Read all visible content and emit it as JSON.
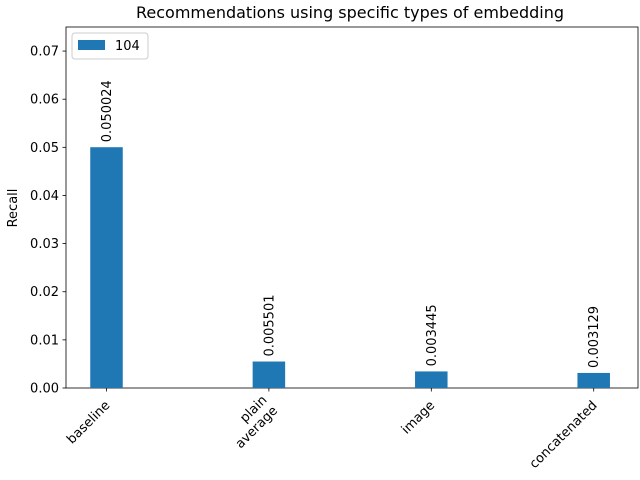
{
  "chart_data": {
    "type": "bar",
    "title": "Recommendations using specific types of embedding",
    "xlabel": "",
    "ylabel": "Recall",
    "categories": [
      "baseline",
      "plain\naverage",
      "image",
      "concatenated"
    ],
    "series": [
      {
        "name": "104",
        "color": "#1f77b4",
        "values": [
          0.050024,
          0.005501,
          0.003445,
          0.003129
        ],
        "labels": [
          "0.050024",
          "0.005501",
          "0.003445",
          "0.003129"
        ]
      }
    ],
    "ylim": [
      0,
      0.075
    ],
    "yticks": [
      0,
      0.01,
      0.02,
      0.03,
      0.04,
      0.05,
      0.06,
      0.07
    ],
    "ytick_labels": [
      "0.00",
      "0.01",
      "0.02",
      "0.03",
      "0.04",
      "0.05",
      "0.06",
      "0.07"
    ],
    "grid": false,
    "legend_position": "top-left",
    "xtick_rotation_deg": 45
  }
}
